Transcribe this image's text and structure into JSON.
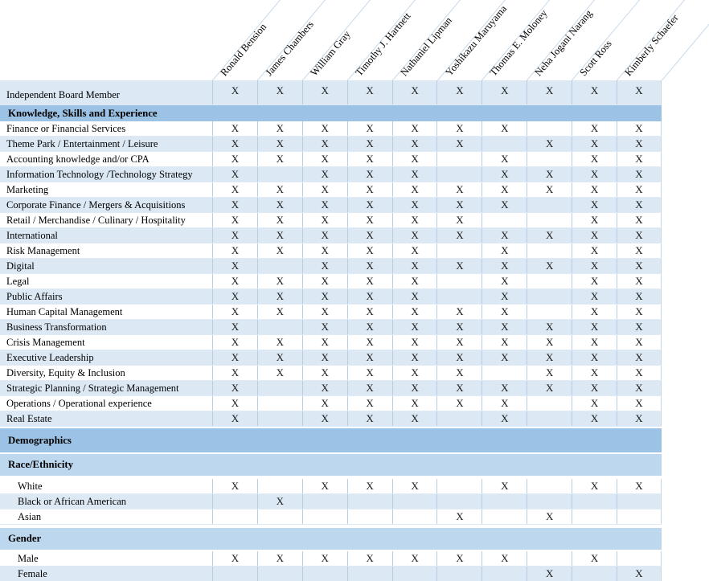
{
  "table": {
    "people": [
      "Ronald Bension",
      "James Chambers",
      "William Gray",
      "Timothy J. Hartnett",
      "Nathaniel Lipman",
      "Yoshikazu Maruyama",
      "Thomas E. Moloney",
      "Neha Jogani Narang",
      "Scott Ross",
      "Kimberly Schaefer"
    ],
    "mark": "X",
    "colors": {
      "band_row": "#dce9f5",
      "section_header": "#9cc2e5",
      "subsection_header": "#bdd7ee",
      "grid_line": "#b7cde3"
    },
    "rows": [
      {
        "label": "Independent Board Member",
        "type": "data",
        "shade": "band",
        "first": true,
        "indent": 0,
        "cells": [
          "X",
          "X",
          "X",
          "X",
          "X",
          "X",
          "X",
          "X",
          "X",
          "X"
        ]
      },
      {
        "label": "Knowledge, Skills and Experience",
        "type": "section"
      },
      {
        "label": "Finance or Financial Services",
        "type": "data",
        "shade": "white",
        "indent": 0,
        "cells": [
          "X",
          "X",
          "X",
          "X",
          "X",
          "X",
          "X",
          "",
          "X",
          "X"
        ]
      },
      {
        "label": "Theme Park / Entertainment / Leisure",
        "type": "data",
        "shade": "band",
        "indent": 0,
        "cells": [
          "X",
          "X",
          "X",
          "X",
          "X",
          "X",
          "",
          "X",
          "X",
          "X"
        ]
      },
      {
        "label": "Accounting knowledge and/or CPA",
        "type": "data",
        "shade": "white",
        "indent": 0,
        "cells": [
          "X",
          "X",
          "X",
          "X",
          "X",
          "",
          "X",
          "",
          "X",
          "X"
        ]
      },
      {
        "label": "Information Technology /Technology Strategy",
        "type": "data",
        "shade": "band",
        "indent": 0,
        "cells": [
          "X",
          "",
          "X",
          "X",
          "X",
          "",
          "X",
          "X",
          "X",
          "X"
        ]
      },
      {
        "label": "Marketing",
        "type": "data",
        "shade": "white",
        "indent": 0,
        "cells": [
          "X",
          "X",
          "X",
          "X",
          "X",
          "X",
          "X",
          "X",
          "X",
          "X"
        ]
      },
      {
        "label": "Corporate Finance / Mergers & Acquisitions",
        "type": "data",
        "shade": "band",
        "indent": 0,
        "cells": [
          "X",
          "X",
          "X",
          "X",
          "X",
          "X",
          "X",
          "",
          "X",
          "X"
        ]
      },
      {
        "label": "Retail / Merchandise / Culinary / Hospitality",
        "type": "data",
        "shade": "white",
        "indent": 0,
        "cells": [
          "X",
          "X",
          "X",
          "X",
          "X",
          "X",
          "",
          "",
          "X",
          "X"
        ]
      },
      {
        "label": "International",
        "type": "data",
        "shade": "band",
        "indent": 0,
        "cells": [
          "X",
          "X",
          "X",
          "X",
          "X",
          "X",
          "X",
          "X",
          "X",
          "X"
        ]
      },
      {
        "label": "Risk Management",
        "type": "data",
        "shade": "white",
        "indent": 0,
        "cells": [
          "X",
          "X",
          "X",
          "X",
          "X",
          "",
          "X",
          "",
          "X",
          "X"
        ]
      },
      {
        "label": "Digital",
        "type": "data",
        "shade": "band",
        "indent": 0,
        "cells": [
          "X",
          "",
          "X",
          "X",
          "X",
          "X",
          "X",
          "X",
          "X",
          "X"
        ]
      },
      {
        "label": "Legal",
        "type": "data",
        "shade": "white",
        "indent": 0,
        "cells": [
          "X",
          "X",
          "X",
          "X",
          "X",
          "",
          "X",
          "",
          "X",
          "X"
        ]
      },
      {
        "label": "Public Affairs",
        "type": "data",
        "shade": "band",
        "indent": 0,
        "cells": [
          "X",
          "X",
          "X",
          "X",
          "X",
          "",
          "X",
          "",
          "X",
          "X"
        ]
      },
      {
        "label": "Human Capital Management",
        "type": "data",
        "shade": "white",
        "indent": 0,
        "cells": [
          "X",
          "X",
          "X",
          "X",
          "X",
          "X",
          "X",
          "",
          "X",
          "X"
        ]
      },
      {
        "label": "Business Transformation",
        "type": "data",
        "shade": "band",
        "indent": 0,
        "cells": [
          "X",
          "",
          "X",
          "X",
          "X",
          "X",
          "X",
          "X",
          "X",
          "X"
        ]
      },
      {
        "label": "Crisis Management",
        "type": "data",
        "shade": "white",
        "indent": 0,
        "cells": [
          "X",
          "X",
          "X",
          "X",
          "X",
          "X",
          "X",
          "X",
          "X",
          "X"
        ]
      },
      {
        "label": "Executive Leadership",
        "type": "data",
        "shade": "band",
        "indent": 0,
        "cells": [
          "X",
          "X",
          "X",
          "X",
          "X",
          "X",
          "X",
          "X",
          "X",
          "X"
        ]
      },
      {
        "label": "Diversity, Equity & Inclusion",
        "type": "data",
        "shade": "white",
        "indent": 0,
        "cells": [
          "X",
          "X",
          "X",
          "X",
          "X",
          "X",
          "",
          "X",
          "X",
          "X"
        ]
      },
      {
        "label": "Strategic Planning / Strategic Management",
        "type": "data",
        "shade": "band",
        "indent": 0,
        "cells": [
          "X",
          "",
          "X",
          "X",
          "X",
          "X",
          "X",
          "X",
          "X",
          "X"
        ]
      },
      {
        "label": "Operations / Operational experience",
        "type": "data",
        "shade": "white",
        "indent": 0,
        "cells": [
          "X",
          "",
          "X",
          "X",
          "X",
          "X",
          "X",
          "",
          "X",
          "X"
        ]
      },
      {
        "label": "Real Estate",
        "type": "data",
        "shade": "band",
        "indent": 0,
        "cells": [
          "X",
          "",
          "X",
          "X",
          "X",
          "",
          "X",
          "",
          "X",
          "X"
        ]
      },
      {
        "label": "Demographics",
        "type": "major"
      },
      {
        "label": "Race/Ethnicity",
        "type": "sub"
      },
      {
        "label": "White",
        "type": "data",
        "shade": "white",
        "indent": 1,
        "cells": [
          "X",
          "",
          "X",
          "X",
          "X",
          "",
          "X",
          "",
          "X",
          "X"
        ]
      },
      {
        "label": "Black or African American",
        "type": "data",
        "shade": "band",
        "indent": 1,
        "cells": [
          "",
          "X",
          "",
          "",
          "",
          "",
          "",
          "",
          "",
          ""
        ]
      },
      {
        "label": "Asian",
        "type": "data",
        "shade": "white",
        "indent": 1,
        "cells": [
          "",
          "",
          "",
          "",
          "",
          "X",
          "",
          "X",
          "",
          ""
        ]
      },
      {
        "label": "Gender",
        "type": "sub",
        "gapTop": true
      },
      {
        "label": "Male",
        "type": "data",
        "shade": "white",
        "indent": 1,
        "cells": [
          "X",
          "X",
          "X",
          "X",
          "X",
          "X",
          "X",
          "",
          "X",
          ""
        ]
      },
      {
        "label": "Female",
        "type": "data",
        "shade": "band",
        "indent": 1,
        "cells": [
          "",
          "",
          "",
          "",
          "",
          "",
          "",
          "X",
          "",
          "X"
        ]
      }
    ]
  }
}
